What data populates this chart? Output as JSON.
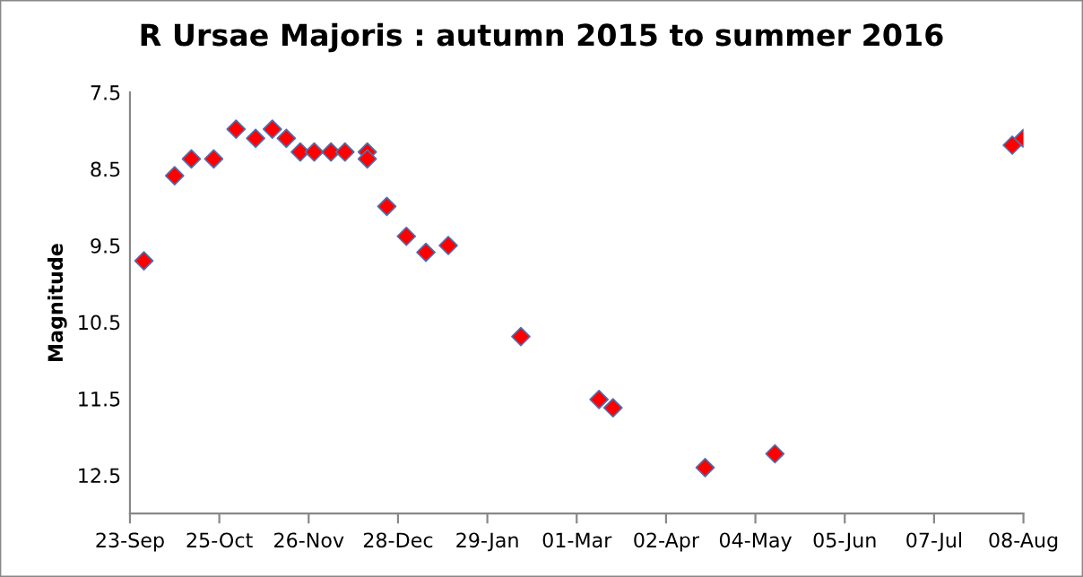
{
  "chart_data": {
    "type": "scatter",
    "title": "R Ursae Majoris : autumn 2015 to summer 2016",
    "ylabel": "Magnitude",
    "x": [
      "2015-09-28",
      "2015-10-09",
      "2015-10-15",
      "2015-10-23",
      "2015-10-31",
      "2015-11-07",
      "2015-11-13",
      "2015-11-18",
      "2015-11-23",
      "2015-11-28",
      "2015-12-04",
      "2015-12-09",
      "2015-12-17",
      "2015-12-17",
      "2015-12-24",
      "2015-12-31",
      "2016-01-07",
      "2016-01-15",
      "2016-02-10",
      "2016-03-09",
      "2016-03-14",
      "2016-04-16",
      "2016-05-11",
      "2016-08-04",
      "2016-08-08"
    ],
    "values": [
      9.7,
      8.59,
      8.37,
      8.37,
      7.98,
      8.1,
      7.98,
      8.1,
      8.28,
      8.28,
      8.28,
      8.28,
      8.28,
      8.37,
      8.99,
      9.38,
      9.59,
      9.5,
      10.69,
      11.51,
      11.62,
      12.4,
      12.22,
      8.19,
      8.1
    ],
    "color": "#ff0000",
    "marker": "diamond",
    "xlim": [
      "2015-09-23",
      "2016-08-08"
    ],
    "xticks": [
      {
        "value": "2015-09-23",
        "label": "23-Sep"
      },
      {
        "value": "2015-10-25",
        "label": "25-Oct"
      },
      {
        "value": "2015-11-26",
        "label": "26-Nov"
      },
      {
        "value": "2015-12-28",
        "label": "28-Dec"
      },
      {
        "value": "2016-01-29",
        "label": "29-Jan"
      },
      {
        "value": "2016-03-01",
        "label": "01-Mar"
      },
      {
        "value": "2016-04-02",
        "label": "02-Apr"
      },
      {
        "value": "2016-05-04",
        "label": "04-May"
      },
      {
        "value": "2016-06-05",
        "label": "05-Jun"
      },
      {
        "value": "2016-07-07",
        "label": "07-Jul"
      },
      {
        "value": "2016-08-08",
        "label": "08-Aug"
      }
    ],
    "ylim": [
      13,
      7.5
    ],
    "yticks": [
      7.5,
      8.5,
      9.5,
      10.5,
      11.5,
      12.5
    ],
    "grid": false,
    "legend": false
  }
}
